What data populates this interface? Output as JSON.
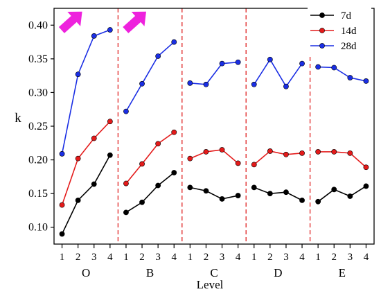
{
  "chart_data": {
    "type": "line",
    "xlabel": "Level",
    "ylabel": "k",
    "ylim": [
      0.075,
      0.425
    ],
    "yticks": [
      0.1,
      0.15,
      0.2,
      0.25,
      0.3,
      0.35,
      0.4
    ],
    "grid": false,
    "legend_position": "top-right",
    "groups": [
      "O",
      "B",
      "C",
      "D",
      "E"
    ],
    "levels": [
      "1",
      "2",
      "3",
      "4"
    ],
    "separator_color": "#e02020",
    "arrow_color": "#ee22dd",
    "arrows_in_groups": [
      "O",
      "B"
    ],
    "series": [
      {
        "name": "7d",
        "color": "#000000",
        "values": [
          [
            0.09,
            0.14,
            0.164,
            0.207
          ],
          [
            0.122,
            0.137,
            0.162,
            0.181
          ],
          [
            0.159,
            0.154,
            0.142,
            0.147
          ],
          [
            0.159,
            0.15,
            0.152,
            0.14
          ],
          [
            0.138,
            0.156,
            0.146,
            0.161
          ]
        ]
      },
      {
        "name": "14d",
        "color": "#e41a1a",
        "values": [
          [
            0.133,
            0.202,
            0.232,
            0.257
          ],
          [
            0.165,
            0.194,
            0.224,
            0.241
          ],
          [
            0.202,
            0.212,
            0.215,
            0.195
          ],
          [
            0.193,
            0.213,
            0.208,
            0.21
          ],
          [
            0.212,
            0.212,
            0.21,
            0.189
          ]
        ]
      },
      {
        "name": "28d",
        "color": "#1a2ee4",
        "values": [
          [
            0.209,
            0.327,
            0.384,
            0.393
          ],
          [
            0.272,
            0.313,
            0.354,
            0.375
          ],
          [
            0.314,
            0.312,
            0.343,
            0.345
          ],
          [
            0.312,
            0.349,
            0.309,
            0.343
          ],
          [
            0.338,
            0.337,
            0.322,
            0.317
          ]
        ]
      }
    ]
  }
}
